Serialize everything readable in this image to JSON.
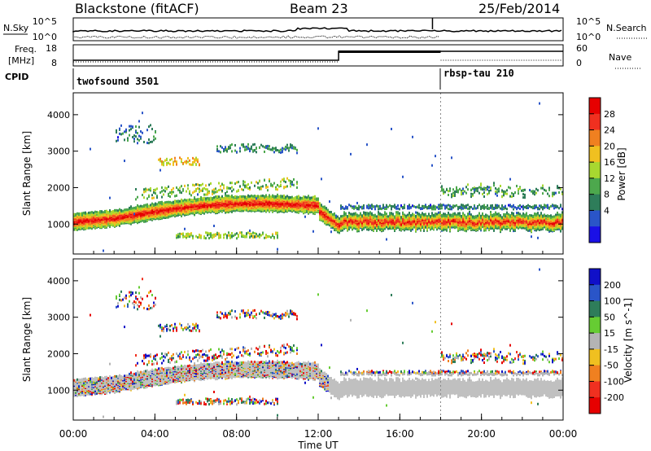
{
  "header": {
    "title": "Blackstone (fitACF)",
    "beam": "Beam 23",
    "date": "25/Feb/2014"
  },
  "nsky_panel": {
    "left_label": "N.Sky",
    "right_label": "N.Search",
    "left_ticks": [
      "10^5",
      "10^0"
    ],
    "right_ticks": [
      "10^5",
      "10^0"
    ]
  },
  "freq_panel": {
    "left_label_1": "Freq.",
    "left_label_2": "[MHz]",
    "right_label": "Nave",
    "left_ticks": [
      "18",
      "8"
    ],
    "right_ticks": [
      "60",
      "0"
    ]
  },
  "cpid": {
    "label": "CPID",
    "programs": [
      {
        "name": "twofsound 3501",
        "start_hour": 0
      },
      {
        "name": "rbsp-tau 210",
        "start_hour": 18
      }
    ]
  },
  "colors": {
    "power_scale": [
      "#1a10e6",
      "#2a55c8",
      "#2e7d5a",
      "#4da84d",
      "#a8d830",
      "#f0c020",
      "#f08020",
      "#f03020",
      "#e60000"
    ],
    "velocity_scale": [
      "#1010c8",
      "#2a55c8",
      "#2e7d5a",
      "#66cc33",
      "#b4b4b4",
      "#f0c020",
      "#f08020",
      "#f03020",
      "#e60000"
    ]
  },
  "chart_data": [
    {
      "type": "heatmap",
      "name": "power",
      "ylabel": "Slant Range [km]",
      "x_range_hours": [
        0,
        24
      ],
      "ylim": [
        180,
        4600
      ],
      "y_ticks": [
        "1000",
        "2000",
        "3000",
        "4000"
      ],
      "colorbar": {
        "label": "Power [dB]",
        "ticks": [
          "28",
          "24",
          "20",
          "16",
          "12",
          "8",
          "4"
        ]
      },
      "bands": [
        {
          "range_km": 1100,
          "level": 0.9,
          "t_start": 0,
          "t_end": 2
        },
        {
          "range_km": 1550,
          "level": 0.85,
          "t_start": 2,
          "t_end": 12
        },
        {
          "range_km": 1100,
          "level": 0.85,
          "t_start": 12,
          "t_end": 24
        },
        {
          "range_km": 2000,
          "level": 0.3,
          "t_start": 4,
          "t_end": 12
        },
        {
          "range_km": 2750,
          "level": 0.5,
          "t_start": 4,
          "t_end": 6
        },
        {
          "range_km": 700,
          "level": 0.4,
          "t_start": 5,
          "t_end": 10
        },
        {
          "range_km": 1800,
          "level": 0.3,
          "t_start": 18,
          "t_end": 24
        }
      ]
    },
    {
      "type": "heatmap",
      "name": "velocity",
      "xlabel": "Time UT",
      "ylabel": "Slant Range [km]",
      "x_range_hours": [
        0,
        24
      ],
      "x_ticks": [
        "00:00",
        "04:00",
        "08:00",
        "12:00",
        "16:00",
        "20:00",
        "00:00"
      ],
      "ylim": [
        180,
        4600
      ],
      "y_ticks": [
        "1000",
        "2000",
        "3000",
        "4000"
      ],
      "colorbar": {
        "label": "Velocity [m s^-1]",
        "ticks": [
          "200",
          "100",
          "50",
          "15",
          "-15",
          "-50",
          "-100",
          "-200"
        ]
      }
    }
  ]
}
